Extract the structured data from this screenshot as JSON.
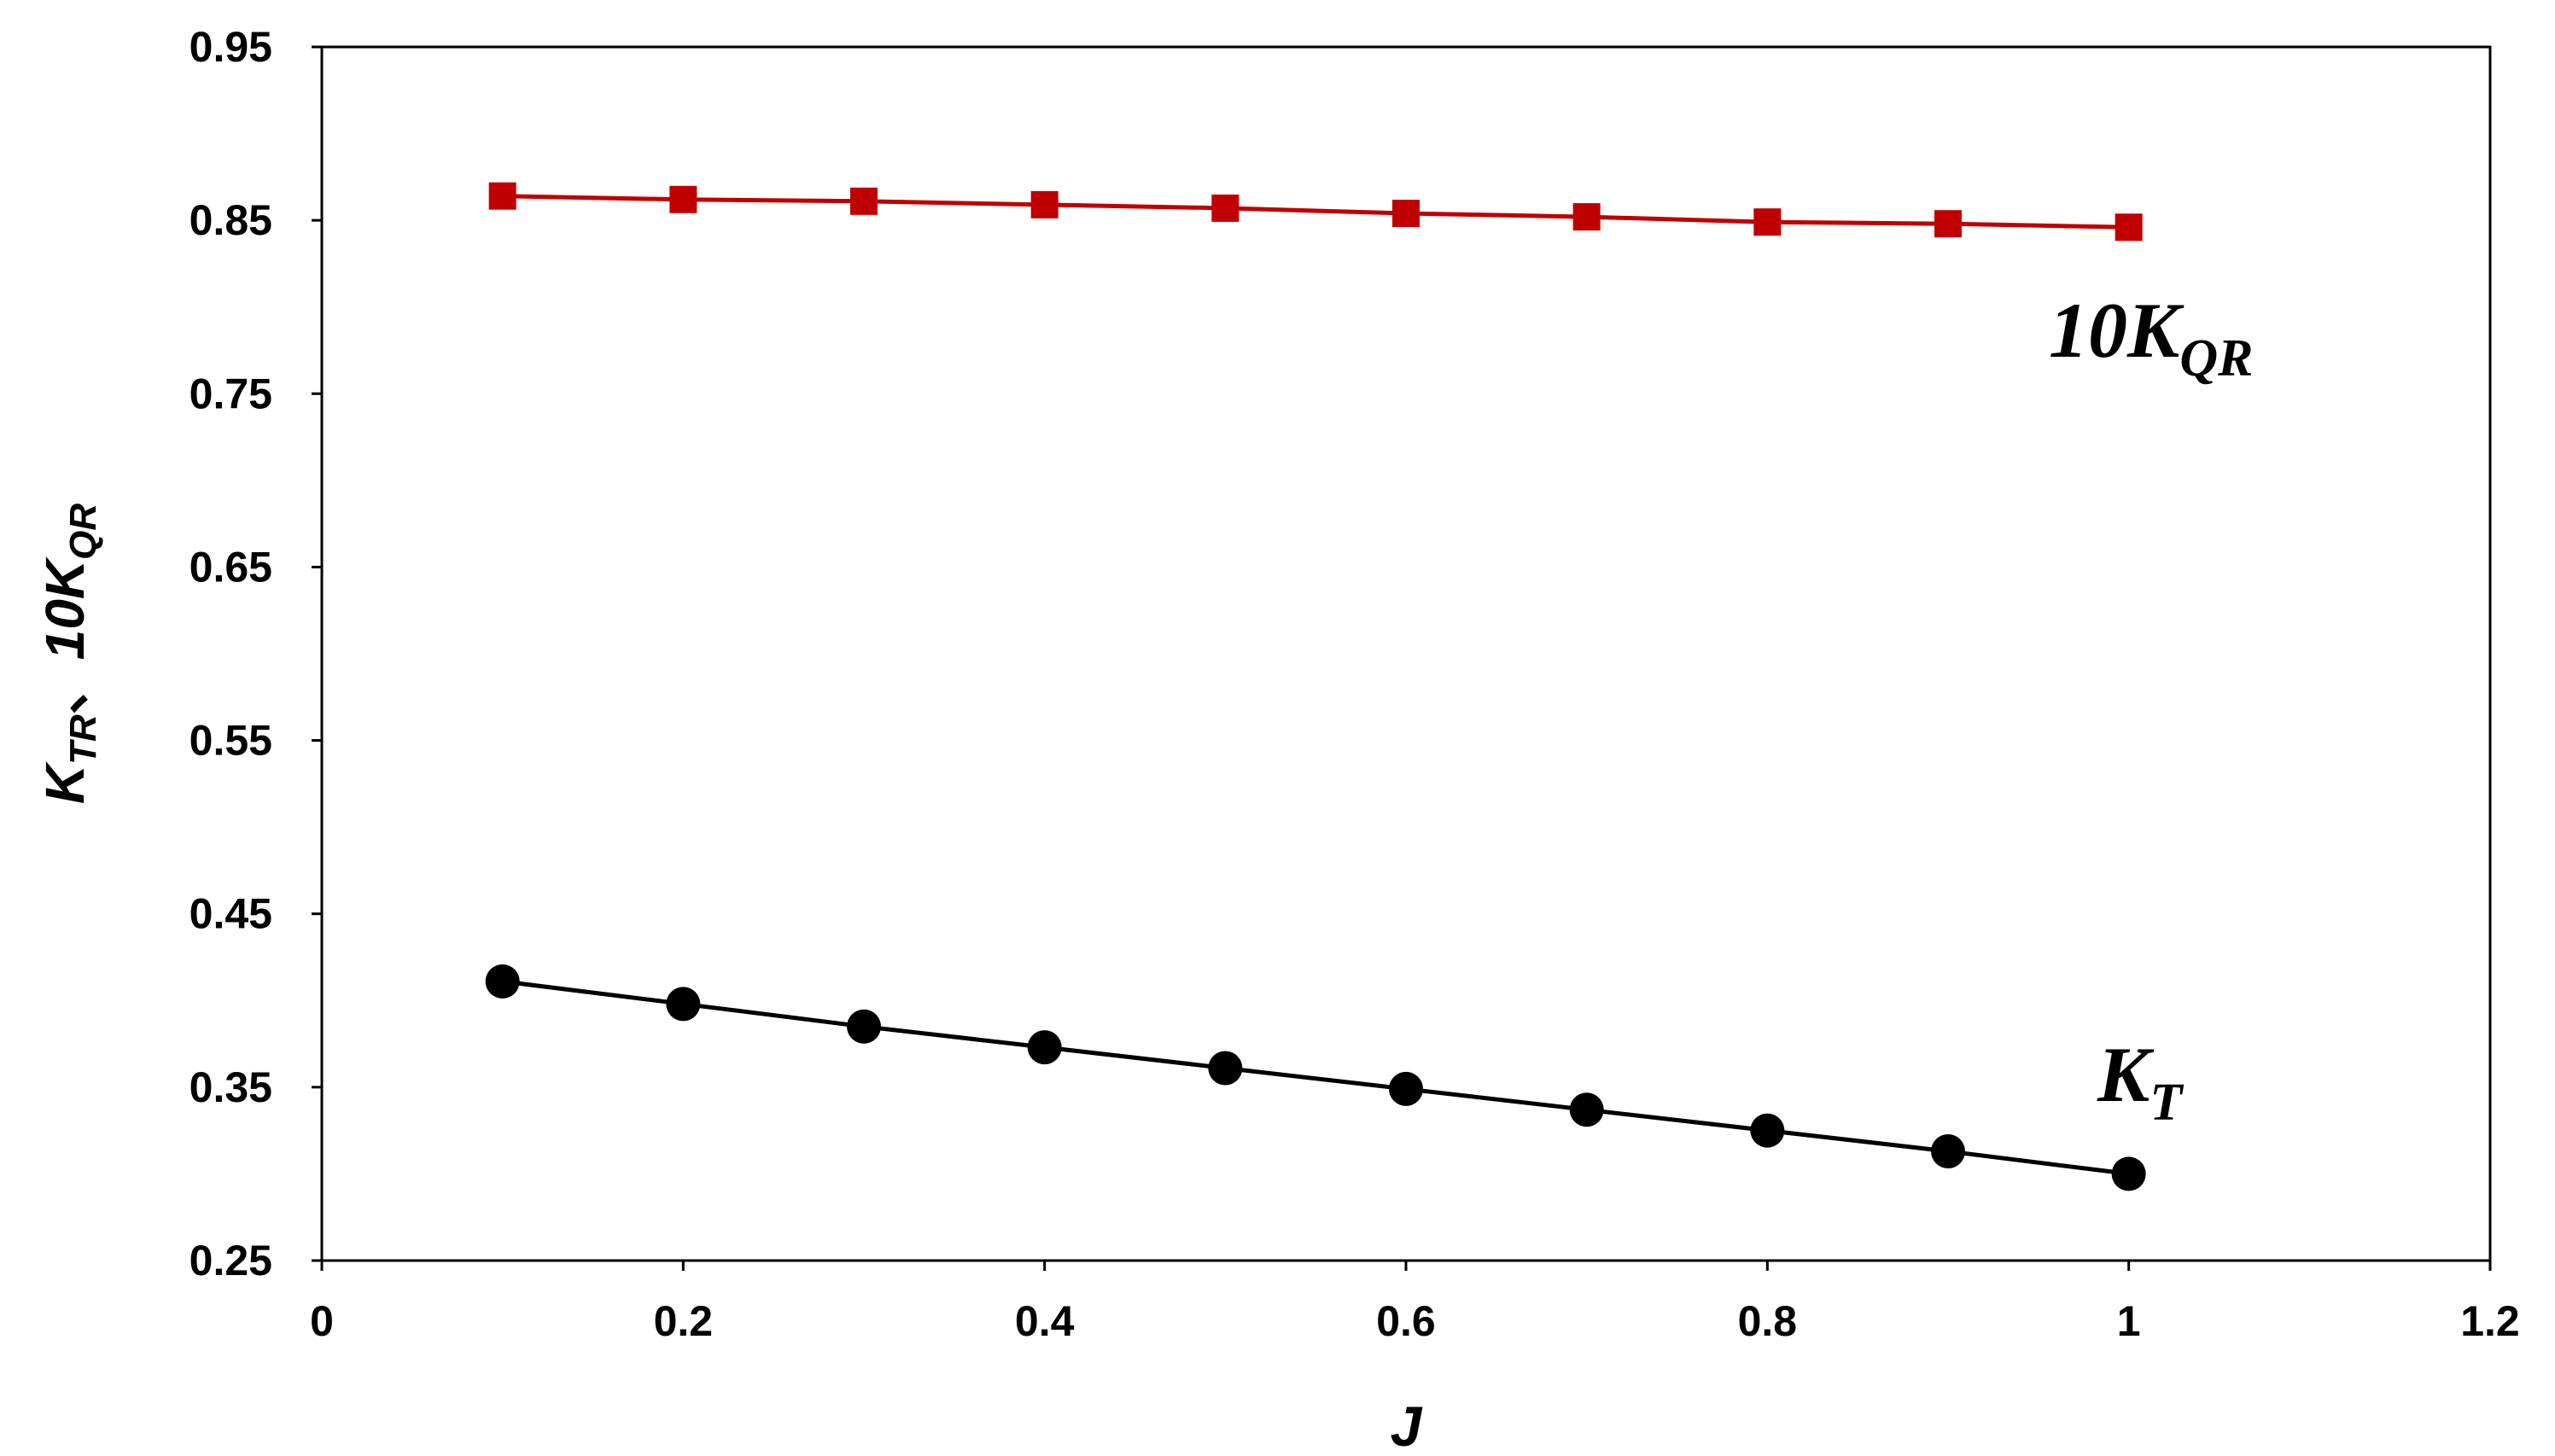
{
  "chart_data": {
    "type": "line",
    "xlabel": "J",
    "ylabel": {
      "k": "K",
      "k_sub": "TR",
      "sep": "、",
      "prefix": "10K",
      "prefix_sub": "QR"
    },
    "xlim": [
      0,
      1.2
    ],
    "ylim": [
      0.25,
      0.95
    ],
    "x_ticks": [
      "0",
      "0.2",
      "0.4",
      "0.6",
      "0.8",
      "1",
      "1.2"
    ],
    "y_ticks": [
      "0.25",
      "0.35",
      "0.45",
      "0.55",
      "0.65",
      "0.75",
      "0.85",
      "0.95"
    ],
    "grid": false,
    "series": [
      {
        "name": "10KQR",
        "label_main": "10K",
        "label_sub": "QR",
        "color": "#c00000",
        "marker": "square",
        "x": [
          0.1,
          0.2,
          0.3,
          0.4,
          0.5,
          0.6,
          0.7,
          0.8,
          0.9,
          1.0
        ],
        "y": [
          0.864,
          0.862,
          0.861,
          0.859,
          0.857,
          0.854,
          0.852,
          0.849,
          0.848,
          0.846
        ]
      },
      {
        "name": "KT",
        "label_main": "K",
        "label_sub": "T",
        "color": "#000000",
        "marker": "circle",
        "x": [
          0.1,
          0.2,
          0.3,
          0.4,
          0.5,
          0.6,
          0.7,
          0.8,
          0.9,
          1.0
        ],
        "y": [
          0.411,
          0.398,
          0.385,
          0.373,
          0.361,
          0.349,
          0.337,
          0.325,
          0.313,
          0.3
        ]
      }
    ]
  }
}
